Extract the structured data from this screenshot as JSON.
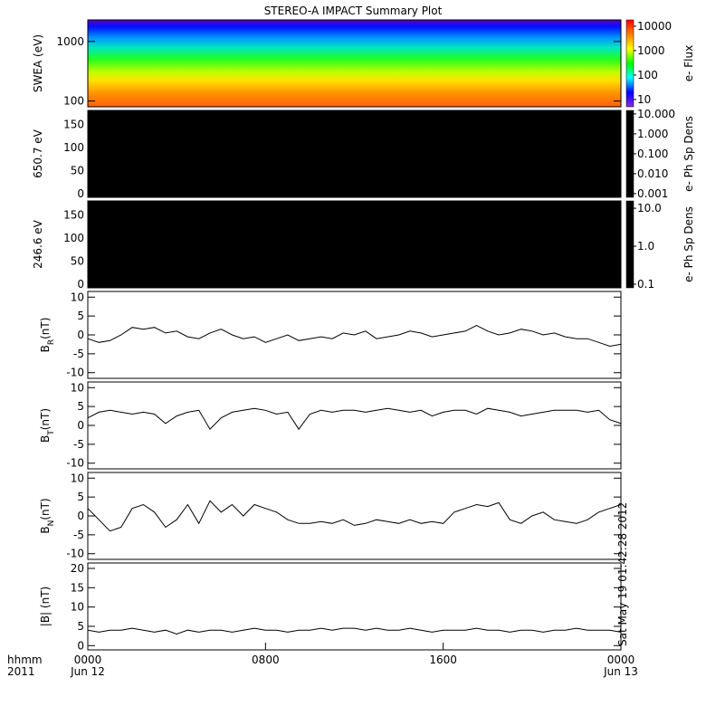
{
  "title": "STEREO-A IMPACT Summary Plot",
  "timestamp": "Sat May 19 01:42:28 2012",
  "chart_data": [
    {
      "type": "spectrogram",
      "ylabel": "SWEA (eV)",
      "ylog": true,
      "ylim": [
        80,
        2300
      ],
      "yticks": [
        100,
        1000
      ],
      "colorbar_label": "e- Flux",
      "colorbar_colors": [
        "#8a2be2",
        "#0000ff",
        "#00ffff",
        "#00ff00",
        "#ffff00",
        "#ff8000",
        "#ff0000"
      ],
      "clim": [
        5,
        18000
      ],
      "cticks": [
        10,
        100,
        1000,
        10000
      ]
    },
    {
      "type": "blank",
      "ylabel": "650.7 eV",
      "ylim": [
        -8,
        180
      ],
      "yticks": [
        0,
        50,
        100,
        150
      ],
      "colorbar_label": "e- Ph Sp Dens",
      "colorbar_colors": [
        "#000000"
      ],
      "clim": [
        0.00065,
        15
      ],
      "cticks": [
        {
          "value": 10,
          "label": "10.000"
        },
        {
          "value": 1,
          "label": "1.000"
        },
        {
          "value": 0.1,
          "label": "0.100"
        },
        {
          "value": 0.01,
          "label": "0.010"
        },
        {
          "value": 0.001,
          "label": "0.001"
        }
      ]
    },
    {
      "type": "blank",
      "ylabel": "246.6 eV",
      "ylim": [
        -8,
        180
      ],
      "yticks": [
        0,
        50,
        100,
        150
      ],
      "colorbar_label": "e- Ph Sp Dens",
      "colorbar_colors": [
        "#000000"
      ],
      "clim": [
        0.08,
        15.6
      ],
      "cticks": [
        {
          "value": 10,
          "label": "10.0"
        },
        {
          "value": 1,
          "label": "1.0"
        },
        {
          "value": 0.1,
          "label": "0.1"
        }
      ]
    },
    {
      "type": "line",
      "ylabel": "B",
      "ylabel_sub": "R",
      "ylabel_unit": "(nT)",
      "ylim": [
        -11.5,
        11.5
      ],
      "yticks": [
        -10,
        -5,
        0,
        5,
        10
      ],
      "color": "#000000",
      "xlim": [
        0,
        24
      ],
      "x": [
        0,
        0.5,
        1,
        1.5,
        2,
        2.5,
        3,
        3.5,
        4,
        4.5,
        5,
        5.5,
        6,
        6.5,
        7,
        7.5,
        8,
        8.5,
        9,
        9.5,
        10,
        10.5,
        11,
        11.5,
        12,
        12.5,
        13,
        13.5,
        14,
        14.5,
        15,
        15.5,
        16,
        16.5,
        17,
        17.5,
        18,
        18.5,
        19,
        19.5,
        20,
        20.5,
        21,
        21.5,
        22,
        22.5,
        23,
        23.5,
        24
      ],
      "values": [
        -1,
        -2,
        -1.5,
        0,
        2,
        1.5,
        2,
        0.5,
        1,
        -0.5,
        -1,
        0.5,
        1.5,
        0,
        -1,
        -0.5,
        -2,
        -1,
        0,
        -1.5,
        -1,
        -0.5,
        -1,
        0.5,
        0,
        1,
        -1,
        -0.5,
        0,
        1,
        0.5,
        -0.5,
        0,
        0.5,
        1,
        2.5,
        1,
        0,
        0.5,
        1.5,
        1,
        0,
        0.5,
        -0.5,
        -1,
        -1,
        -2,
        -3,
        -2.5
      ]
    },
    {
      "type": "line",
      "ylabel": "B",
      "ylabel_sub": "T",
      "ylabel_unit": "(nT)",
      "ylim": [
        -11.5,
        11.5
      ],
      "yticks": [
        -10,
        -5,
        0,
        5,
        10
      ],
      "color": "#000000",
      "xlim": [
        0,
        24
      ],
      "x": [
        0,
        0.5,
        1,
        1.5,
        2,
        2.5,
        3,
        3.5,
        4,
        4.5,
        5,
        5.5,
        6,
        6.5,
        7,
        7.5,
        8,
        8.5,
        9,
        9.5,
        10,
        10.5,
        11,
        11.5,
        12,
        12.5,
        13,
        13.5,
        14,
        14.5,
        15,
        15.5,
        16,
        16.5,
        17,
        17.5,
        18,
        18.5,
        19,
        19.5,
        20,
        20.5,
        21,
        21.5,
        22,
        22.5,
        23,
        23.5,
        24
      ],
      "values": [
        2,
        3.5,
        4,
        3.5,
        3,
        3.5,
        3,
        0.5,
        2.5,
        3.5,
        4,
        -1,
        2,
        3.5,
        4,
        4.5,
        4,
        3,
        3.5,
        -1,
        3,
        4,
        3.5,
        4,
        4,
        3.5,
        4,
        4.5,
        4,
        3.5,
        4,
        2.5,
        3.5,
        4,
        4,
        3,
        4.5,
        4,
        3.5,
        2.5,
        3,
        3.5,
        4,
        4,
        4,
        3.5,
        4,
        1.5,
        0.5
      ]
    },
    {
      "type": "line",
      "ylabel": "B",
      "ylabel_sub": "N",
      "ylabel_unit": "(nT)",
      "ylim": [
        -11.5,
        11.5
      ],
      "yticks": [
        -10,
        -5,
        0,
        5,
        10
      ],
      "color": "#000000",
      "xlim": [
        0,
        24
      ],
      "x": [
        0,
        0.5,
        1,
        1.5,
        2,
        2.5,
        3,
        3.5,
        4,
        4.5,
        5,
        5.5,
        6,
        6.5,
        7,
        7.5,
        8,
        8.5,
        9,
        9.5,
        10,
        10.5,
        11,
        11.5,
        12,
        12.5,
        13,
        13.5,
        14,
        14.5,
        15,
        15.5,
        16,
        16.5,
        17,
        17.5,
        18,
        18.5,
        19,
        19.5,
        20,
        20.5,
        21,
        21.5,
        22,
        22.5,
        23,
        23.5,
        24
      ],
      "values": [
        2,
        -1,
        -4,
        -3,
        2,
        3,
        1,
        -3,
        -1,
        3,
        -2,
        4,
        1,
        3,
        0,
        3,
        2,
        1,
        -1,
        -2,
        -2,
        -1.5,
        -2,
        -1,
        -2.5,
        -2,
        -1,
        -1.5,
        -2,
        -1,
        -2,
        -1.5,
        -2,
        1,
        2,
        3,
        2.5,
        3.5,
        -1,
        -2,
        0,
        1,
        -1,
        -1.5,
        -2,
        -1,
        1,
        2,
        3
      ]
    },
    {
      "type": "line",
      "ylabel": "|B| (nT)",
      "ylim": [
        -1.1,
        21.4
      ],
      "yticks": [
        0,
        5,
        10,
        15,
        20
      ],
      "color": "#000000",
      "xlim": [
        0,
        24
      ],
      "x": [
        0,
        0.5,
        1,
        1.5,
        2,
        2.5,
        3,
        3.5,
        4,
        4.5,
        5,
        5.5,
        6,
        6.5,
        7,
        7.5,
        8,
        8.5,
        9,
        9.5,
        10,
        10.5,
        11,
        11.5,
        12,
        12.5,
        13,
        13.5,
        14,
        14.5,
        15,
        15.5,
        16,
        16.5,
        17,
        17.5,
        18,
        18.5,
        19,
        19.5,
        20,
        20.5,
        21,
        21.5,
        22,
        22.5,
        23,
        23.5,
        24
      ],
      "values": [
        4,
        3.5,
        4,
        4,
        4.5,
        4,
        3.5,
        4,
        3,
        4,
        3.5,
        4,
        4,
        3.5,
        4,
        4.5,
        4,
        4,
        3.5,
        4,
        4,
        4.5,
        4,
        4.5,
        4.5,
        4,
        4.5,
        4,
        4,
        4.5,
        4,
        3.5,
        4,
        4,
        4,
        4.5,
        4,
        4,
        3.5,
        4,
        4,
        3.5,
        4,
        4,
        4.5,
        4,
        4,
        4,
        3.5
      ],
      "xticks": [
        {
          "value": 0,
          "label": "0000"
        },
        {
          "value": 8,
          "label": "0800"
        },
        {
          "value": 16,
          "label": "1600"
        },
        {
          "value": 24,
          "label": "0000"
        }
      ],
      "xtick_dates": [
        {
          "value": 0,
          "label": "Jun 12"
        },
        {
          "value": 24,
          "label": "Jun 13"
        }
      ],
      "xaxis_caption": [
        "hhmm",
        "2011"
      ]
    }
  ]
}
